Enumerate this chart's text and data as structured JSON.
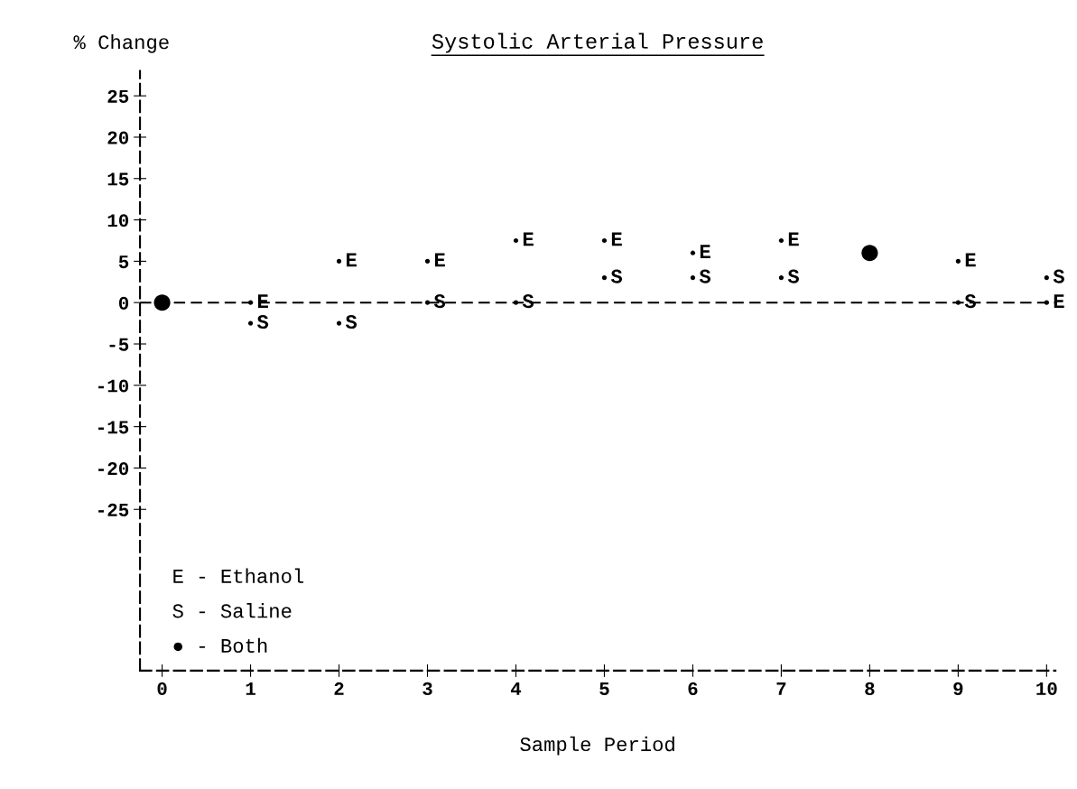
{
  "chart_data": {
    "type": "scatter",
    "title": "Systolic Arterial Pressure",
    "xlabel": "Sample Period",
    "ylabel": "% Change",
    "x": [
      0,
      1,
      2,
      3,
      4,
      5,
      6,
      7,
      8,
      9,
      10
    ],
    "series": [
      {
        "marker": "circle",
        "color": "#000000",
        "values": [
          null,
          0,
          5,
          5,
          7.5,
          7.5,
          6,
          7.5,
          null,
          5,
          0
        ],
        "value_labels": [
          null,
          "E",
          "E",
          "E",
          "E",
          "E",
          "E",
          "E",
          null,
          "E",
          "E"
        ]
      },
      {
        "marker": "circle",
        "color": "#000000",
        "values": [
          null,
          -2.5,
          -2.5,
          0,
          0,
          3,
          3,
          3,
          null,
          0,
          3
        ],
        "value_labels": [
          null,
          "S",
          "S",
          "S",
          "S",
          "S",
          "S",
          "S",
          null,
          "S",
          "S"
        ]
      },
      {
        "marker": "circle",
        "color": "#000000",
        "values": [
          0,
          null,
          null,
          null,
          null,
          null,
          null,
          null,
          6,
          null,
          null
        ]
      }
    ],
    "xlim": [
      -0.25,
      10.1
    ],
    "ylim": [
      -44.5,
      28
    ],
    "xticks": [
      0,
      1,
      2,
      3,
      4,
      5,
      6,
      7,
      8,
      9,
      10
    ],
    "yticks": [
      -25,
      -20,
      -15,
      -10,
      -5,
      0,
      5,
      10,
      15,
      20,
      25
    ],
    "ref_lines": [
      {
        "axis": "y",
        "value": 0,
        "line_style": "dashed",
        "color": "#000000"
      }
    ],
    "annotations": [
      "E - Ethanol",
      "S - Saline",
      "● - Both"
    ],
    "grid": false
  }
}
